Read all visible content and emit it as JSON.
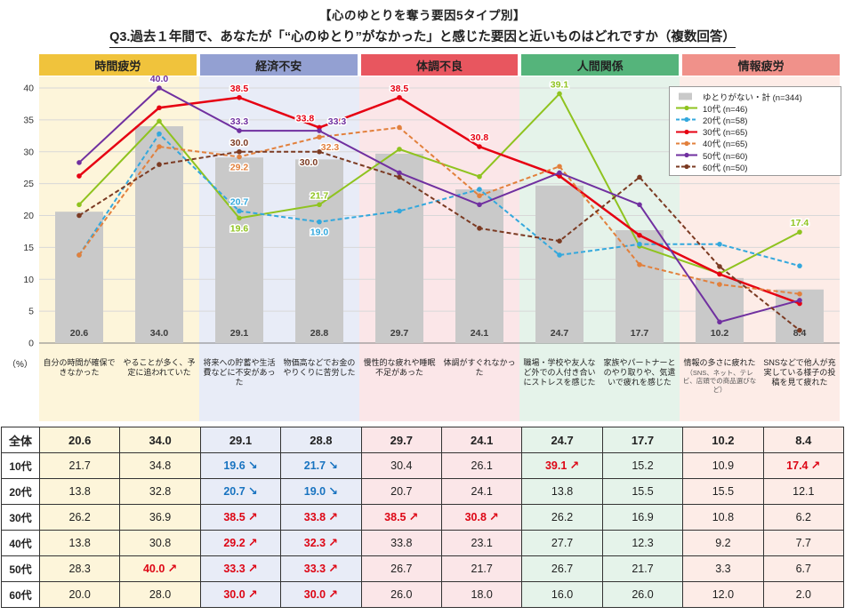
{
  "title": "【心のゆとりを奪う要因5タイプ別】",
  "question": "Q3.過去１年間で、あなたが「“心のゆとり”がなかった」と感じた要因と近いものはどれですか（複数回答）",
  "groups": [
    {
      "label": "時間疲労",
      "header_color": "#f0c33c",
      "band_color": "#fdf5da"
    },
    {
      "label": "経済不安",
      "header_color": "#93a0d2",
      "band_color": "#e8ecf7"
    },
    {
      "label": "体調不良",
      "header_color": "#e8565f",
      "band_color": "#fbe6e8"
    },
    {
      "label": "人間関係",
      "header_color": "#55b47b",
      "band_color": "#e5f3ea"
    },
    {
      "label": "情報疲労",
      "header_color": "#f0918a",
      "band_color": "#fdece7"
    }
  ],
  "chart_data": {
    "type": "bar+line",
    "ylim": [
      0,
      40
    ],
    "ytick_step": 5,
    "grid": true,
    "legend_position": "top-right",
    "ylabel": "（%）",
    "categories": [
      {
        "label": "自分の時間が確保できなかった"
      },
      {
        "label": "やることが多く、予定に追われていた"
      },
      {
        "label": "将来への貯蓄や生活費などに不安があった"
      },
      {
        "label": "物価高などでお金のやりくりに苦労した"
      },
      {
        "label": "慢性的な疲れや睡眠不足があった"
      },
      {
        "label": "体調がすぐれなかった"
      },
      {
        "label": "職場・学校や友人など外での人付き合いにストレスを感じた"
      },
      {
        "label": "家族やパートナーとのやり取りや、気遣いで疲れを感じた"
      },
      {
        "label": "情報の多さに疲れた",
        "note": "（SNS、ネット、テレビ、店頭での商品選びなど）"
      },
      {
        "label": "SNSなどで他人が充実している様子の投稿を見て疲れた"
      }
    ],
    "bar_series": {
      "name": "ゆとりがない・計 (n=344)",
      "color": "#c9c9c9",
      "values": [
        20.6,
        34.0,
        29.1,
        28.8,
        29.7,
        24.1,
        24.7,
        17.7,
        10.2,
        8.4
      ]
    },
    "line_series": [
      {
        "name": "10代 (n=46)",
        "color": "#8fc31f",
        "dash": false,
        "values": [
          21.7,
          34.8,
          19.6,
          21.7,
          30.4,
          26.1,
          39.1,
          15.2,
          10.9,
          17.4
        ],
        "trends": {
          "2": "down",
          "3": "down",
          "6": "up",
          "9": "up"
        },
        "point_labels": [
          {
            "i": 2,
            "pos": "below"
          },
          {
            "i": 3,
            "pos": "above"
          },
          {
            "i": 6,
            "pos": "above"
          },
          {
            "i": 9,
            "pos": "above"
          }
        ]
      },
      {
        "name": "20代 (n=58)",
        "color": "#33a8dd",
        "dash": true,
        "values": [
          13.8,
          32.8,
          20.7,
          19.0,
          20.7,
          24.1,
          13.8,
          15.5,
          15.5,
          12.1
        ],
        "trends": {
          "2": "down",
          "3": "down"
        },
        "point_labels": [
          {
            "i": 2,
            "pos": "above"
          },
          {
            "i": 3,
            "pos": "below"
          }
        ]
      },
      {
        "name": "30代 (n=65)",
        "color": "#e60012",
        "dash": false,
        "width": 2.5,
        "values": [
          26.2,
          36.9,
          38.5,
          33.8,
          38.5,
          30.8,
          26.2,
          16.9,
          10.8,
          6.2
        ],
        "trends": {
          "2": "up",
          "3": "up",
          "4": "up",
          "5": "up"
        },
        "point_labels": [
          {
            "i": 2,
            "pos": "above"
          },
          {
            "i": 3,
            "pos": "above",
            "dx": -16
          },
          {
            "i": 4,
            "pos": "above"
          },
          {
            "i": 5,
            "pos": "above"
          }
        ]
      },
      {
        "name": "40代 (n=65)",
        "color": "#e2803c",
        "dash": true,
        "values": [
          13.8,
          30.8,
          29.2,
          32.3,
          33.8,
          23.1,
          27.7,
          12.3,
          9.2,
          7.7
        ],
        "trends": {
          "2": "up",
          "3": "up"
        },
        "point_labels": [
          {
            "i": 2,
            "pos": "below"
          },
          {
            "i": 3,
            "pos": "below",
            "dx": 12
          }
        ]
      },
      {
        "name": "50代 (n=60)",
        "color": "#7030a0",
        "dash": false,
        "values": [
          28.3,
          40.0,
          33.3,
          33.3,
          26.7,
          21.7,
          26.7,
          21.7,
          3.3,
          6.7
        ],
        "trends": {
          "1": "up",
          "2": "up",
          "3": "up"
        },
        "point_labels": [
          {
            "i": 1,
            "pos": "above"
          },
          {
            "i": 2,
            "pos": "above"
          },
          {
            "i": 3,
            "pos": "above",
            "dx": 20
          }
        ]
      },
      {
        "name": "60代 (n=50)",
        "color": "#7b3a22",
        "dash": true,
        "values": [
          20.0,
          28.0,
          30.0,
          30.0,
          26.0,
          18.0,
          16.0,
          26.0,
          12.0,
          2.0
        ],
        "trends": {
          "2": "up",
          "3": "up"
        },
        "point_labels": [
          {
            "i": 2,
            "pos": "above"
          },
          {
            "i": 3,
            "pos": "below",
            "dx": -12
          }
        ]
      }
    ]
  },
  "table": {
    "row_headers": [
      "全体",
      "10代",
      "20代",
      "30代",
      "40代",
      "50代",
      "60代"
    ]
  }
}
